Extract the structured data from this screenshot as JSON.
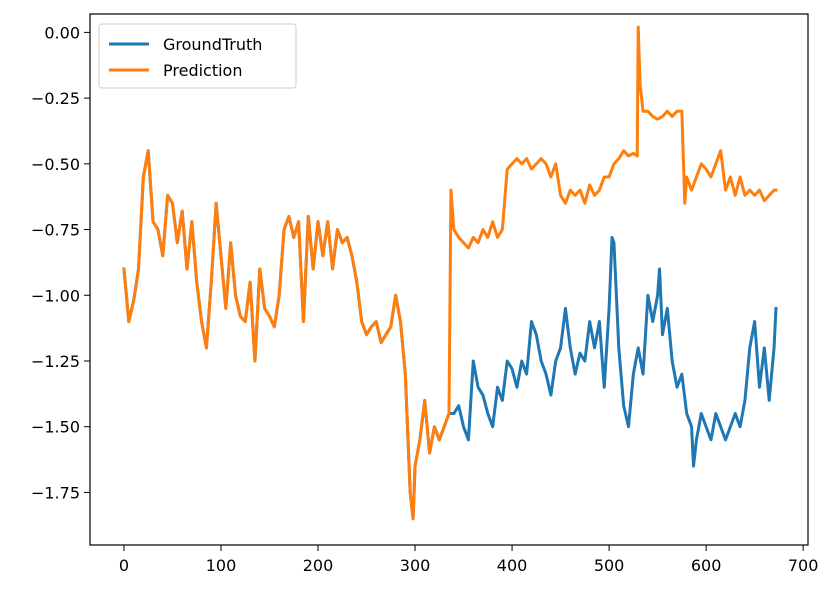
{
  "chart_data": {
    "type": "line",
    "title": "",
    "xlabel": "",
    "ylabel": "",
    "xlim": [
      -35,
      705
    ],
    "ylim": [
      -1.95,
      0.07
    ],
    "xticks": [
      0,
      100,
      200,
      300,
      400,
      500,
      600,
      700
    ],
    "xtick_labels": [
      "0",
      "100",
      "200",
      "300",
      "400",
      "500",
      "600",
      "700"
    ],
    "yticks": [
      0.0,
      -0.25,
      -0.5,
      -0.75,
      -1.0,
      -1.25,
      -1.5,
      -1.75
    ],
    "ytick_labels": [
      "0.00",
      "−0.25",
      "−0.50",
      "−0.75",
      "−1.00",
      "−1.25",
      "−1.50",
      "−1.75"
    ],
    "grid": false,
    "legend_position": "top-left",
    "series": [
      {
        "name": "GroundTruth",
        "color": "#1f77b4",
        "x": [
          0,
          5,
          10,
          15,
          20,
          25,
          30,
          35,
          40,
          45,
          50,
          55,
          60,
          65,
          70,
          75,
          80,
          85,
          90,
          95,
          100,
          105,
          110,
          115,
          120,
          125,
          130,
          135,
          140,
          145,
          150,
          155,
          160,
          165,
          170,
          175,
          180,
          185,
          190,
          195,
          200,
          205,
          210,
          215,
          220,
          225,
          230,
          235,
          240,
          245,
          250,
          255,
          260,
          265,
          270,
          275,
          280,
          285,
          290,
          295,
          298,
          300,
          305,
          310,
          315,
          320,
          325,
          330,
          335,
          340,
          345,
          350,
          355,
          360,
          365,
          370,
          375,
          380,
          385,
          390,
          395,
          400,
          405,
          410,
          415,
          420,
          425,
          430,
          435,
          440,
          445,
          450,
          455,
          460,
          465,
          470,
          475,
          480,
          485,
          490,
          495,
          500,
          503,
          505,
          510,
          515,
          520,
          525,
          530,
          535,
          540,
          545,
          550,
          552,
          555,
          560,
          565,
          570,
          575,
          580,
          585,
          587,
          590,
          595,
          600,
          605,
          610,
          615,
          620,
          625,
          630,
          635,
          640,
          645,
          650,
          655,
          660,
          665,
          670,
          672
        ],
        "y": [
          -0.9,
          -1.1,
          -1.02,
          -0.9,
          -0.55,
          -0.45,
          -0.72,
          -0.75,
          -0.85,
          -0.62,
          -0.65,
          -0.8,
          -0.68,
          -0.9,
          -0.72,
          -0.95,
          -1.1,
          -1.2,
          -0.95,
          -0.65,
          -0.85,
          -1.05,
          -0.8,
          -1.0,
          -1.08,
          -1.1,
          -0.95,
          -1.25,
          -0.9,
          -1.05,
          -1.08,
          -1.12,
          -1.0,
          -0.75,
          -0.7,
          -0.78,
          -0.72,
          -1.1,
          -0.7,
          -0.9,
          -0.72,
          -0.85,
          -0.72,
          -0.9,
          -0.75,
          -0.8,
          -0.78,
          -0.85,
          -0.95,
          -1.1,
          -1.15,
          -1.12,
          -1.1,
          -1.18,
          -1.15,
          -1.12,
          -1.0,
          -1.1,
          -1.3,
          -1.75,
          -1.85,
          -1.65,
          -1.55,
          -1.4,
          -1.6,
          -1.5,
          -1.55,
          -1.5,
          -1.45,
          -1.45,
          -1.42,
          -1.5,
          -1.55,
          -1.25,
          -1.35,
          -1.38,
          -1.45,
          -1.5,
          -1.35,
          -1.4,
          -1.25,
          -1.28,
          -1.35,
          -1.25,
          -1.3,
          -1.1,
          -1.15,
          -1.25,
          -1.3,
          -1.38,
          -1.25,
          -1.2,
          -1.05,
          -1.2,
          -1.3,
          -1.22,
          -1.25,
          -1.1,
          -1.2,
          -1.1,
          -1.35,
          -1.05,
          -0.78,
          -0.8,
          -1.2,
          -1.42,
          -1.5,
          -1.3,
          -1.2,
          -1.3,
          -1.0,
          -1.1,
          -1.0,
          -0.9,
          -1.15,
          -1.05,
          -1.25,
          -1.35,
          -1.3,
          -1.45,
          -1.5,
          -1.65,
          -1.55,
          -1.45,
          -1.5,
          -1.55,
          -1.45,
          -1.5,
          -1.55,
          -1.5,
          -1.45,
          -1.5,
          -1.4,
          -1.2,
          -1.1,
          -1.35,
          -1.2,
          -1.4,
          -1.2,
          -1.05
        ]
      },
      {
        "name": "Prediction",
        "color": "#ff7f0e",
        "x": [
          0,
          5,
          10,
          15,
          20,
          25,
          30,
          35,
          40,
          45,
          50,
          55,
          60,
          65,
          70,
          75,
          80,
          85,
          90,
          95,
          100,
          105,
          110,
          115,
          120,
          125,
          130,
          135,
          140,
          145,
          150,
          155,
          160,
          165,
          170,
          175,
          180,
          185,
          190,
          195,
          200,
          205,
          210,
          215,
          220,
          225,
          230,
          235,
          240,
          245,
          250,
          255,
          260,
          265,
          270,
          275,
          280,
          285,
          290,
          295,
          298,
          300,
          305,
          310,
          315,
          320,
          325,
          330,
          335,
          337,
          340,
          345,
          350,
          355,
          360,
          365,
          370,
          375,
          380,
          385,
          390,
          395,
          400,
          405,
          410,
          415,
          420,
          425,
          430,
          435,
          440,
          445,
          450,
          455,
          460,
          465,
          470,
          475,
          480,
          485,
          490,
          495,
          500,
          505,
          510,
          515,
          520,
          525,
          529,
          530,
          532,
          535,
          540,
          545,
          550,
          555,
          560,
          565,
          570,
          575,
          578,
          580,
          585,
          590,
          595,
          600,
          605,
          610,
          615,
          620,
          625,
          630,
          635,
          640,
          645,
          650,
          655,
          660,
          665,
          670,
          672
        ],
        "y": [
          -0.9,
          -1.1,
          -1.02,
          -0.9,
          -0.55,
          -0.45,
          -0.72,
          -0.75,
          -0.85,
          -0.62,
          -0.65,
          -0.8,
          -0.68,
          -0.9,
          -0.72,
          -0.95,
          -1.1,
          -1.2,
          -0.95,
          -0.65,
          -0.85,
          -1.05,
          -0.8,
          -1.0,
          -1.08,
          -1.1,
          -0.95,
          -1.25,
          -0.9,
          -1.05,
          -1.08,
          -1.12,
          -1.0,
          -0.75,
          -0.7,
          -0.78,
          -0.72,
          -1.1,
          -0.7,
          -0.9,
          -0.72,
          -0.85,
          -0.72,
          -0.9,
          -0.75,
          -0.8,
          -0.78,
          -0.85,
          -0.95,
          -1.1,
          -1.15,
          -1.12,
          -1.1,
          -1.18,
          -1.15,
          -1.12,
          -1.0,
          -1.1,
          -1.3,
          -1.75,
          -1.85,
          -1.65,
          -1.55,
          -1.4,
          -1.6,
          -1.5,
          -1.55,
          -1.5,
          -1.45,
          -0.6,
          -0.75,
          -0.78,
          -0.8,
          -0.82,
          -0.78,
          -0.8,
          -0.75,
          -0.78,
          -0.72,
          -0.78,
          -0.75,
          -0.52,
          -0.5,
          -0.48,
          -0.5,
          -0.48,
          -0.52,
          -0.5,
          -0.48,
          -0.5,
          -0.55,
          -0.5,
          -0.62,
          -0.65,
          -0.6,
          -0.62,
          -0.6,
          -0.65,
          -0.58,
          -0.62,
          -0.6,
          -0.55,
          -0.55,
          -0.5,
          -0.48,
          -0.45,
          -0.47,
          -0.46,
          -0.47,
          0.02,
          -0.2,
          -0.3,
          -0.3,
          -0.32,
          -0.33,
          -0.32,
          -0.3,
          -0.32,
          -0.3,
          -0.3,
          -0.65,
          -0.55,
          -0.6,
          -0.55,
          -0.5,
          -0.52,
          -0.55,
          -0.5,
          -0.45,
          -0.6,
          -0.55,
          -0.62,
          -0.55,
          -0.62,
          -0.6,
          -0.62,
          -0.6,
          -0.64,
          -0.62,
          -0.6,
          -0.6
        ]
      }
    ]
  }
}
